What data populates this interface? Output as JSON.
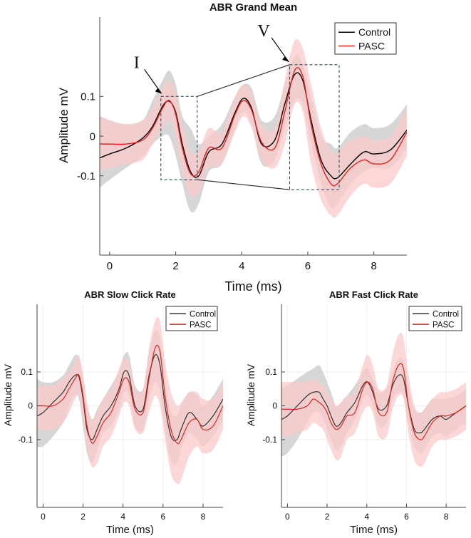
{
  "chart_data": [
    {
      "id": "main",
      "type": "line",
      "title": "ABR Grand Mean",
      "xlabel": "Time (ms)",
      "ylabel": "Amplitude mV",
      "xlim": [
        -0.3,
        9
      ],
      "ylim": [
        -0.3,
        0.3
      ],
      "xticks": [
        "0",
        "2",
        "4",
        "6",
        "8"
      ],
      "yticks": [
        "-0.1",
        "0",
        "0.1"
      ],
      "legend_position": "top-right",
      "series": [
        {
          "name": "Control",
          "color": "#000000",
          "band_color": "#cfcfcf",
          "x": [
            -0.3,
            0.0,
            0.5,
            1.0,
            1.3,
            1.6,
            1.8,
            2.0,
            2.2,
            2.45,
            2.7,
            3.0,
            3.4,
            3.8,
            4.05,
            4.3,
            4.6,
            5.0,
            5.3,
            5.6,
            5.85,
            6.1,
            6.4,
            6.7,
            6.9,
            7.3,
            7.7,
            8.0,
            8.5,
            9.0
          ],
          "y": [
            -0.055,
            -0.045,
            -0.03,
            -0.005,
            0.025,
            0.075,
            0.088,
            0.06,
            -0.02,
            -0.09,
            -0.1,
            -0.04,
            -0.02,
            0.06,
            0.095,
            0.07,
            -0.02,
            -0.01,
            0.08,
            0.155,
            0.14,
            0.04,
            -0.06,
            -0.1,
            -0.105,
            -0.07,
            -0.04,
            -0.045,
            -0.035,
            0.015
          ],
          "band_lower": [
            -0.13,
            -0.11,
            -0.08,
            -0.05,
            -0.02,
            0.0,
            0.0,
            -0.05,
            -0.12,
            -0.19,
            -0.17,
            -0.09,
            -0.07,
            0.02,
            0.06,
            0.03,
            -0.07,
            -0.06,
            0.02,
            0.09,
            0.08,
            -0.02,
            -0.12,
            -0.18,
            -0.17,
            -0.12,
            -0.09,
            -0.08,
            -0.08,
            -0.03
          ],
          "band_upper": [
            0.05,
            0.04,
            0.03,
            0.04,
            0.09,
            0.14,
            0.165,
            0.13,
            0.05,
            0.02,
            -0.02,
            0.0,
            0.03,
            0.1,
            0.13,
            0.12,
            0.04,
            0.05,
            0.13,
            0.2,
            0.18,
            0.1,
            0.0,
            -0.02,
            -0.03,
            0.01,
            0.03,
            0.02,
            0.03,
            0.08
          ]
        },
        {
          "name": "PASC",
          "color": "#e3241b",
          "band_color": "#f9c9c9",
          "x": [
            -0.3,
            0.0,
            0.5,
            1.0,
            1.3,
            1.6,
            1.8,
            2.0,
            2.2,
            2.45,
            2.7,
            3.0,
            3.4,
            3.8,
            4.05,
            4.3,
            4.6,
            5.0,
            5.3,
            5.6,
            5.85,
            6.1,
            6.4,
            6.7,
            6.9,
            7.3,
            7.7,
            8.0,
            8.5,
            9.0
          ],
          "y": [
            -0.02,
            -0.02,
            -0.02,
            -0.01,
            0.02,
            0.07,
            0.09,
            0.055,
            -0.03,
            -0.095,
            -0.09,
            -0.03,
            -0.03,
            0.055,
            0.09,
            0.065,
            -0.015,
            -0.03,
            0.06,
            0.165,
            0.15,
            0.03,
            -0.07,
            -0.12,
            -0.12,
            -0.08,
            -0.06,
            -0.07,
            -0.06,
            0.01
          ],
          "band_lower": [
            -0.09,
            -0.08,
            -0.07,
            -0.06,
            -0.02,
            0.02,
            0.04,
            0.0,
            -0.09,
            -0.15,
            -0.14,
            -0.08,
            -0.07,
            0.01,
            0.05,
            0.02,
            -0.06,
            -0.08,
            -0.02,
            0.08,
            0.06,
            -0.07,
            -0.16,
            -0.2,
            -0.2,
            -0.15,
            -0.12,
            -0.13,
            -0.12,
            -0.05
          ],
          "band_upper": [
            0.05,
            0.04,
            0.03,
            0.04,
            0.07,
            0.12,
            0.14,
            0.11,
            0.03,
            -0.04,
            -0.04,
            0.02,
            0.01,
            0.1,
            0.13,
            0.11,
            0.03,
            0.02,
            0.14,
            0.24,
            0.22,
            0.13,
            0.02,
            -0.04,
            -0.04,
            -0.01,
            0.0,
            -0.01,
            0.0,
            0.07
          ]
        }
      ],
      "annotations": [
        {
          "label": "I",
          "wave_x": 1.7,
          "box_x": [
            1.55,
            2.65
          ],
          "box_y": [
            -0.11,
            0.1
          ]
        },
        {
          "label": "V",
          "wave_x": 5.55,
          "box_x": [
            5.45,
            6.95
          ],
          "box_y": [
            -0.135,
            0.18
          ]
        }
      ]
    },
    {
      "id": "slow",
      "type": "line",
      "title": "ABR Slow Click Rate",
      "xlabel": "Time (ms)",
      "ylabel": "Amplitude mV",
      "xlim": [
        -0.3,
        9
      ],
      "ylim": [
        -0.3,
        0.3
      ],
      "xticks": [
        "0",
        "2",
        "4",
        "6",
        "8"
      ],
      "yticks": [
        "-0.1",
        "0",
        "0.1"
      ],
      "legend_position": "top-right",
      "series": [
        {
          "name": "Control",
          "color": "#333333",
          "band_color": "#cfcfcf",
          "x": [
            -0.3,
            0.0,
            0.5,
            1.0,
            1.3,
            1.6,
            1.8,
            2.0,
            2.2,
            2.45,
            2.7,
            3.0,
            3.4,
            3.8,
            4.05,
            4.3,
            4.6,
            5.0,
            5.3,
            5.6,
            5.85,
            6.1,
            6.4,
            6.7,
            6.9,
            7.3,
            7.7,
            8.0,
            8.5,
            9.0
          ],
          "y": [
            -0.03,
            -0.02,
            0.01,
            0.04,
            0.07,
            0.09,
            0.085,
            0.02,
            -0.07,
            -0.1,
            -0.07,
            -0.03,
            0.0,
            0.05,
            0.1,
            0.09,
            0.0,
            -0.01,
            0.09,
            0.15,
            0.12,
            0.0,
            -0.09,
            -0.1,
            -0.07,
            -0.02,
            -0.04,
            -0.06,
            -0.03,
            0.02
          ],
          "band_lower": [
            -0.12,
            -0.12,
            -0.09,
            -0.05,
            0.0,
            0.03,
            0.02,
            -0.06,
            -0.14,
            -0.17,
            -0.13,
            -0.08,
            -0.06,
            -0.01,
            0.04,
            0.03,
            -0.06,
            -0.07,
            0.02,
            0.07,
            0.04,
            -0.07,
            -0.16,
            -0.17,
            -0.13,
            -0.08,
            -0.1,
            -0.12,
            -0.09,
            -0.04
          ],
          "band_upper": [
            0.08,
            0.07,
            0.07,
            0.09,
            0.12,
            0.15,
            0.14,
            0.09,
            0.0,
            -0.04,
            -0.01,
            0.02,
            0.06,
            0.1,
            0.15,
            0.15,
            0.06,
            0.05,
            0.16,
            0.22,
            0.2,
            0.07,
            -0.02,
            -0.03,
            0.0,
            0.04,
            0.03,
            0.0,
            0.03,
            0.08
          ]
        },
        {
          "name": "PASC",
          "color": "#e3241b",
          "band_color": "#f9c9c9",
          "x": [
            -0.3,
            0.0,
            0.5,
            1.0,
            1.3,
            1.6,
            1.8,
            2.0,
            2.2,
            2.45,
            2.7,
            3.0,
            3.4,
            3.8,
            4.05,
            4.3,
            4.6,
            5.0,
            5.3,
            5.6,
            5.85,
            6.1,
            6.4,
            6.7,
            6.9,
            7.3,
            7.7,
            8.0,
            8.5,
            9.0
          ],
          "y": [
            0.0,
            0.0,
            0.0,
            0.02,
            0.05,
            0.08,
            0.09,
            0.03,
            -0.06,
            -0.11,
            -0.09,
            -0.05,
            -0.02,
            0.04,
            0.08,
            0.07,
            -0.01,
            -0.02,
            0.08,
            0.17,
            0.16,
            0.03,
            -0.07,
            -0.11,
            -0.1,
            -0.05,
            -0.04,
            -0.07,
            -0.06,
            0.0
          ],
          "band_lower": [
            -0.07,
            -0.07,
            -0.07,
            -0.05,
            -0.02,
            0.02,
            0.03,
            -0.04,
            -0.13,
            -0.18,
            -0.17,
            -0.12,
            -0.09,
            -0.03,
            0.01,
            0.0,
            -0.07,
            -0.08,
            -0.02,
            0.03,
            0.0,
            -0.1,
            -0.2,
            -0.23,
            -0.22,
            -0.15,
            -0.12,
            -0.14,
            -0.13,
            -0.07
          ],
          "band_upper": [
            0.06,
            0.06,
            0.06,
            0.08,
            0.1,
            0.13,
            0.15,
            0.09,
            0.01,
            -0.04,
            -0.02,
            0.02,
            0.05,
            0.11,
            0.14,
            0.13,
            0.05,
            0.05,
            0.17,
            0.25,
            0.25,
            0.13,
            0.04,
            0.0,
            0.01,
            0.04,
            0.04,
            0.02,
            0.02,
            0.07
          ]
        }
      ]
    },
    {
      "id": "fast",
      "type": "line",
      "title": "ABR Fast Click Rate",
      "xlabel": "Time (ms)",
      "ylabel": "Amplitude mV",
      "xlim": [
        -0.3,
        9
      ],
      "ylim": [
        -0.3,
        0.3
      ],
      "xticks": [
        "0",
        "2",
        "4",
        "6",
        "8"
      ],
      "yticks": [
        "-0.1",
        "0",
        "0.1"
      ],
      "legend_position": "top-right",
      "series": [
        {
          "name": "Control",
          "color": "#333333",
          "band_color": "#cfcfcf",
          "x": [
            -0.3,
            0.0,
            0.5,
            1.0,
            1.3,
            1.6,
            1.8,
            2.0,
            2.2,
            2.45,
            2.7,
            3.0,
            3.4,
            3.8,
            4.05,
            4.3,
            4.6,
            5.0,
            5.3,
            5.6,
            5.85,
            6.1,
            6.4,
            6.7,
            6.9,
            7.3,
            7.7,
            8.0,
            8.5,
            9.0
          ],
          "y": [
            -0.04,
            -0.03,
            0.0,
            0.03,
            0.04,
            0.04,
            0.02,
            0.0,
            -0.03,
            -0.06,
            -0.05,
            -0.02,
            0.01,
            0.06,
            0.07,
            0.04,
            -0.01,
            0.0,
            0.06,
            0.09,
            0.08,
            0.0,
            -0.07,
            -0.08,
            -0.07,
            -0.04,
            -0.03,
            -0.04,
            -0.02,
            0.0
          ],
          "band_lower": [
            -0.15,
            -0.14,
            -0.1,
            -0.05,
            -0.02,
            -0.02,
            -0.04,
            -0.07,
            -0.1,
            -0.13,
            -0.12,
            -0.08,
            -0.04,
            0.02,
            0.03,
            0.0,
            -0.06,
            -0.05,
            0.02,
            0.04,
            0.03,
            -0.05,
            -0.12,
            -0.14,
            -0.13,
            -0.09,
            -0.08,
            -0.09,
            -0.07,
            -0.05
          ],
          "band_upper": [
            0.05,
            0.06,
            0.08,
            0.1,
            0.11,
            0.12,
            0.1,
            0.07,
            0.04,
            0.0,
            0.01,
            0.03,
            0.06,
            0.1,
            0.11,
            0.08,
            0.04,
            0.05,
            0.1,
            0.14,
            0.13,
            0.06,
            -0.01,
            -0.02,
            -0.01,
            0.02,
            0.02,
            0.02,
            0.03,
            0.05
          ]
        },
        {
          "name": "PASC",
          "color": "#e3241b",
          "band_color": "#f9c9c9",
          "x": [
            -0.3,
            0.0,
            0.5,
            1.0,
            1.3,
            1.6,
            1.8,
            2.0,
            2.2,
            2.45,
            2.7,
            3.0,
            3.4,
            3.8,
            4.05,
            4.3,
            4.6,
            5.0,
            5.3,
            5.6,
            5.85,
            6.1,
            6.4,
            6.7,
            6.9,
            7.3,
            7.7,
            8.0,
            8.5,
            9.0
          ],
          "y": [
            -0.01,
            -0.01,
            -0.01,
            0.0,
            0.02,
            0.01,
            0.0,
            -0.02,
            -0.05,
            -0.07,
            -0.06,
            -0.03,
            -0.02,
            0.05,
            0.07,
            0.05,
            -0.02,
            -0.02,
            0.07,
            0.12,
            0.11,
            0.0,
            -0.08,
            -0.1,
            -0.09,
            -0.05,
            -0.03,
            -0.03,
            -0.02,
            0.0
          ],
          "band_lower": [
            -0.09,
            -0.09,
            -0.08,
            -0.07,
            -0.05,
            -0.06,
            -0.07,
            -0.1,
            -0.13,
            -0.16,
            -0.15,
            -0.1,
            -0.08,
            -0.02,
            0.0,
            -0.02,
            -0.09,
            -0.09,
            -0.01,
            0.03,
            0.02,
            -0.08,
            -0.16,
            -0.18,
            -0.17,
            -0.12,
            -0.1,
            -0.1,
            -0.09,
            -0.07
          ],
          "band_upper": [
            0.07,
            0.07,
            0.07,
            0.07,
            0.08,
            0.07,
            0.06,
            0.04,
            0.02,
            0.0,
            0.01,
            0.03,
            0.04,
            0.12,
            0.15,
            0.12,
            0.05,
            0.06,
            0.15,
            0.21,
            0.2,
            0.09,
            0.0,
            -0.02,
            -0.01,
            0.02,
            0.04,
            0.04,
            0.05,
            0.07
          ]
        }
      ]
    }
  ]
}
